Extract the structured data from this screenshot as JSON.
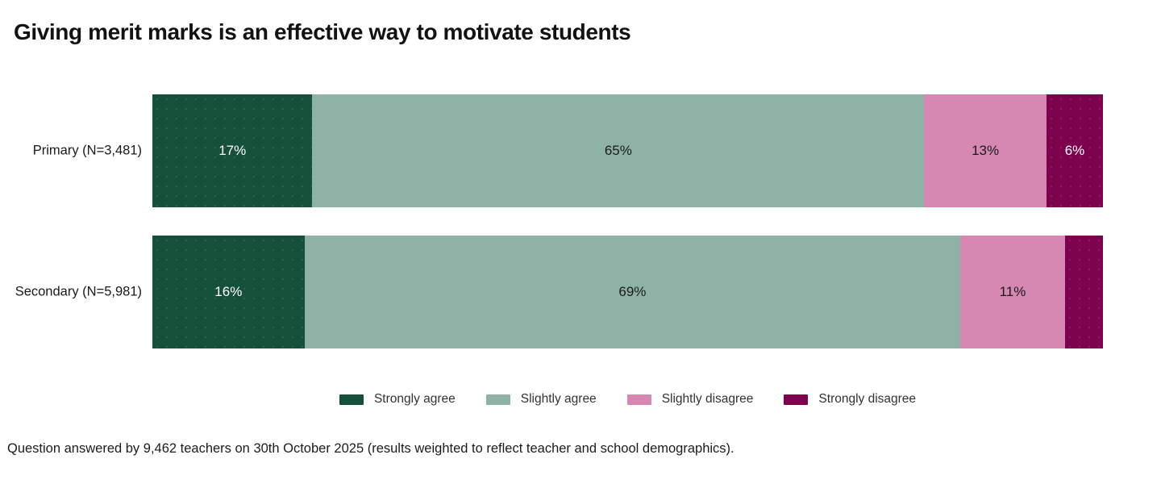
{
  "title": "Giving merit marks is an effective way to motivate students",
  "footnote": "Question answered by 9,462 teachers on 30th October 2025 (results weighted to reflect teacher and school demographics).",
  "colors": {
    "strongly_agree": "#14503a",
    "slightly_agree": "#8fb2a6",
    "slightly_disagree": "#d687b2",
    "strongly_disagree": "#7d034f",
    "segment_label_dark": "#1a1a1a",
    "segment_label_light": "#ffffff",
    "title_text": "#121212",
    "legend_text": "#333333",
    "footnote_text": "#1c1c1c"
  },
  "chart_data": {
    "type": "bar",
    "variant": "horizontal-stacked",
    "title": "Giving merit marks is an effective way to motivate students",
    "xlabel": "",
    "ylabel": "",
    "xlim": [
      0,
      100
    ],
    "grid": false,
    "legend_position": "bottom-center",
    "categories": [
      "Primary (N=3,481)",
      "Secondary (N=5,981)"
    ],
    "series": [
      {
        "name": "Strongly agree",
        "color": "#14503a",
        "textured": true,
        "label_style": "light",
        "values": [
          17,
          16
        ],
        "labels": [
          "17%",
          "16%"
        ]
      },
      {
        "name": "Slightly agree",
        "color": "#8fb2a6",
        "textured": false,
        "label_style": "dark",
        "values": [
          65,
          69
        ],
        "labels": [
          "65%",
          "69%"
        ]
      },
      {
        "name": "Slightly disagree",
        "color": "#d687b2",
        "textured": false,
        "label_style": "dark",
        "values": [
          13,
          11
        ],
        "labels": [
          "13%",
          "11%"
        ]
      },
      {
        "name": "Strongly disagree",
        "color": "#7d034f",
        "textured": true,
        "label_style": "light",
        "values": [
          6,
          4
        ],
        "labels": [
          "6%",
          ""
        ]
      }
    ],
    "legend_entries": [
      "Strongly agree",
      "Slightly agree",
      "Slightly disagree",
      "Strongly disagree"
    ]
  }
}
